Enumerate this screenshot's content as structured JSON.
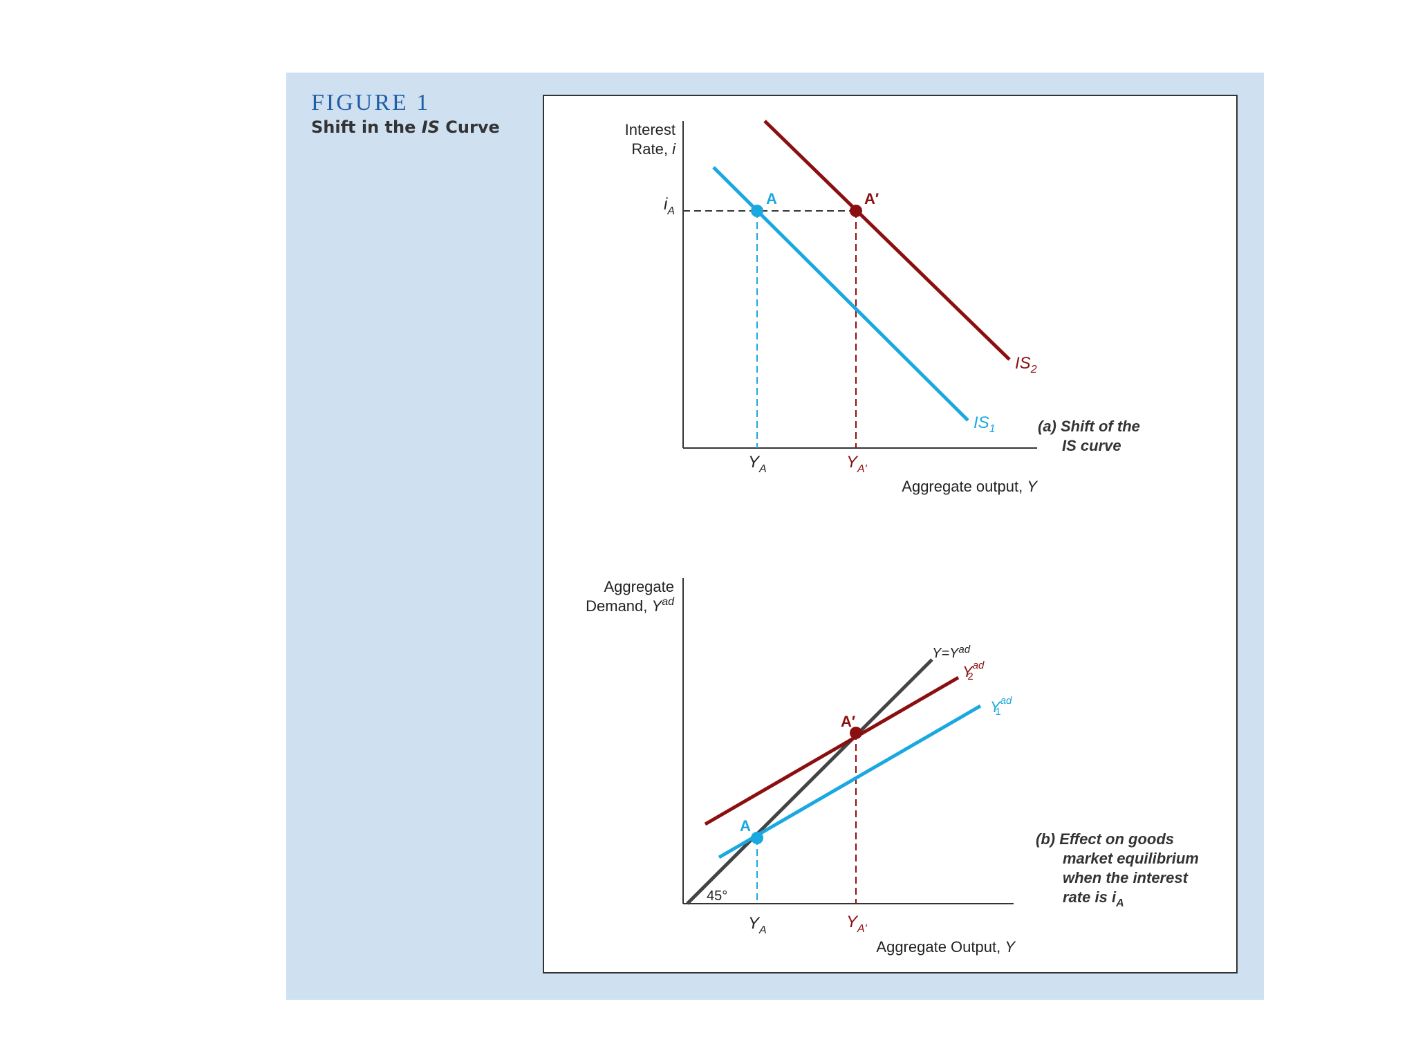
{
  "figure": {
    "label": "FIGURE 1",
    "title_pre": "Shift in the ",
    "title_italic": "IS",
    "title_post": " Curve"
  },
  "top_panel": {
    "y_axis_label_line1": "Interest",
    "y_axis_label_line2_text": "Rate, ",
    "y_axis_label_line2_var": "i",
    "x_axis_label_text": "Aggregate output, ",
    "x_axis_label_var": "Y",
    "i_a_main": "i",
    "i_a_sub": "A",
    "point_a": "A",
    "point_a_prime": "A′",
    "y_a_main": "Y",
    "y_a_sub": "A",
    "y_a_prime_main": "Y",
    "y_a_prime_sub": "A′",
    "is1_main": "IS",
    "is1_sub": "1",
    "is2_main": "IS",
    "is2_sub": "2",
    "caption_line1": "(a) Shift of the",
    "caption_line2": "IS curve"
  },
  "bottom_panel": {
    "y_axis_label_line1": "Aggregate",
    "y_axis_label_line2_text": "Demand, ",
    "y_axis_label_line2_var": "Y",
    "y_axis_label_line2_sup": "ad",
    "x_axis_label_text": "Aggregate Output, ",
    "x_axis_label_var": "Y",
    "angle_label": "45°",
    "point_a": "A",
    "point_a_prime": "A′",
    "y_a_main": "Y",
    "y_a_sub": "A",
    "y_a_prime_main": "Y",
    "y_a_prime_sub": "A′",
    "line45_label_main": "Y=Y",
    "line45_label_sup": "ad",
    "y2_main": "Y",
    "y2_sup": "ad",
    "y2_sub": "2",
    "y1_main": "Y",
    "y1_sup": "ad",
    "y1_sub": "1",
    "caption_line1": "(b) Effect on goods",
    "caption_line2": "market equilibrium",
    "caption_line3": "when the interest",
    "caption_line4_text": "rate is ",
    "caption_line4_var": "i",
    "caption_line4_sub": "A"
  },
  "colors": {
    "is1": "#1aa8e0",
    "is2": "#8b0f10",
    "line45": "#444444",
    "panel_bg": "#cfe0f0",
    "title_blue": "#1f5fa8"
  }
}
